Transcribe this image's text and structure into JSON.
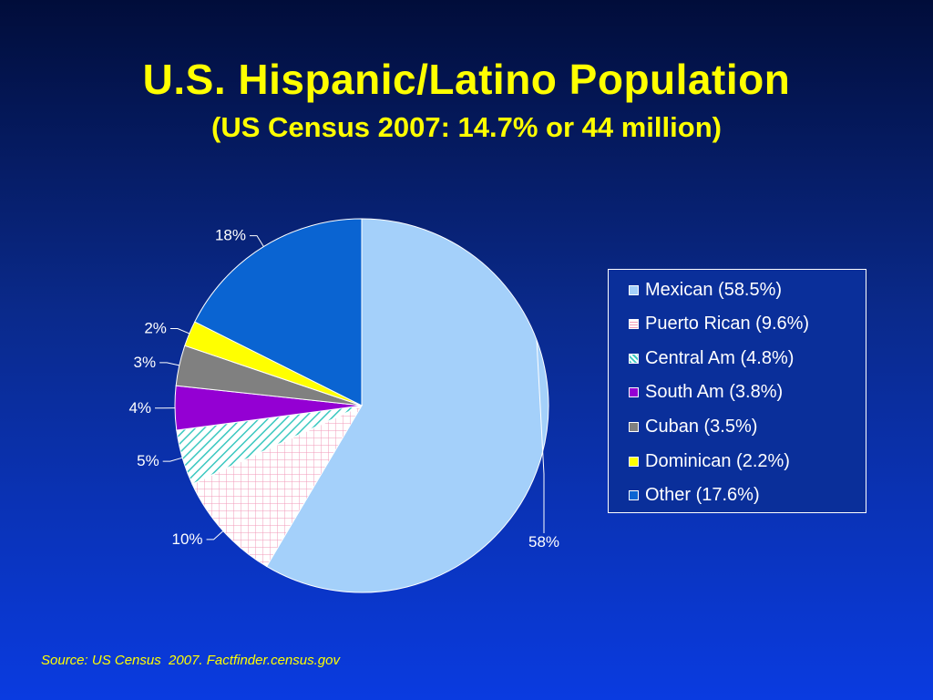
{
  "header": {
    "title": "U.S. Hispanic/Latino Population",
    "subtitle": "(US Census 2007: 14.7% or 44 million)"
  },
  "footer": {
    "source": "Source: US Census  2007. Factfinder.census.gov"
  },
  "chart_data": {
    "type": "pie",
    "title": "U.S. Hispanic/Latino Population",
    "subtitle": "(US Census 2007: 14.7% or 44 million)",
    "legend_position": "right",
    "slices": [
      {
        "legend": "Mexican (58.5%)",
        "value": 58.5,
        "label": "58%",
        "color": "#a4d0fa",
        "pattern": "solid"
      },
      {
        "legend": "Puerto Rican (9.6%)",
        "value": 9.6,
        "label": "10%",
        "color": "#ffffff",
        "pattern": "grid"
      },
      {
        "legend": "Central Am (4.8%)",
        "value": 4.8,
        "label": "5%",
        "color": "#ffffff",
        "pattern": "diagonal"
      },
      {
        "legend": "South Am (3.8%)",
        "value": 3.8,
        "label": "4%",
        "color": "#9400d3",
        "pattern": "solid"
      },
      {
        "legend": "Cuban (3.5%)",
        "value": 3.5,
        "label": "3%",
        "color": "#808080",
        "pattern": "solid"
      },
      {
        "legend": "Dominican (2.2%)",
        "value": 2.2,
        "label": "2%",
        "color": "#ffff00",
        "pattern": "solid"
      },
      {
        "legend": "Other (17.6%)",
        "value": 17.6,
        "label": "18%",
        "color": "#0a64d2",
        "pattern": "solid"
      }
    ]
  }
}
